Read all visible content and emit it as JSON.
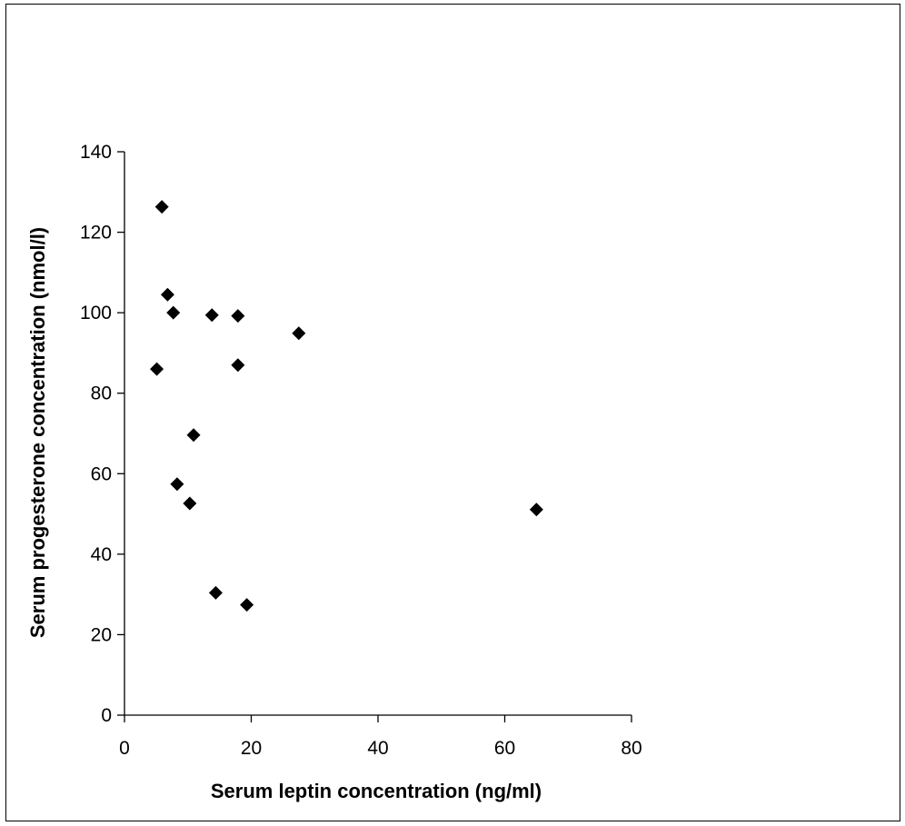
{
  "chart_data": {
    "type": "scatter",
    "title": "",
    "xlabel": "Serum leptin concentration (ng/ml)",
    "ylabel": "Serum progesterone concentration (nmol/l)",
    "xlim": [
      0,
      80
    ],
    "ylim": [
      0,
      140
    ],
    "xticks": [
      "0",
      "20",
      "40",
      "60",
      "80"
    ],
    "yticks": [
      "0",
      "20",
      "40",
      "60",
      "80",
      "100",
      "120",
      "140"
    ],
    "grid": false,
    "legend": "none",
    "marker": "diamond",
    "marker_color": "#000000",
    "points": [
      {
        "x": 5.9,
        "y": 126.3
      },
      {
        "x": 6.8,
        "y": 104.5
      },
      {
        "x": 7.7,
        "y": 100.0
      },
      {
        "x": 13.8,
        "y": 99.4
      },
      {
        "x": 17.9,
        "y": 99.2
      },
      {
        "x": 27.5,
        "y": 94.9
      },
      {
        "x": 5.1,
        "y": 86.0
      },
      {
        "x": 17.9,
        "y": 87.0
      },
      {
        "x": 10.9,
        "y": 69.6
      },
      {
        "x": 8.3,
        "y": 57.4
      },
      {
        "x": 10.3,
        "y": 52.6
      },
      {
        "x": 65.0,
        "y": 51.1
      },
      {
        "x": 14.4,
        "y": 30.4
      },
      {
        "x": 19.3,
        "y": 27.4
      }
    ]
  }
}
